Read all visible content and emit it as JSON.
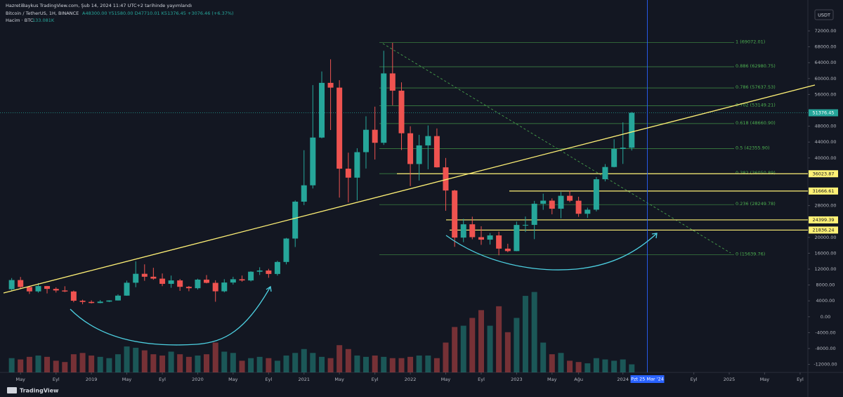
{
  "chart_data": {
    "type": "candlestick",
    "published": "HazretiBaykus TradingView.com, Şub 14, 2024 11:47 UTC+2 tarihinde yayımlandı",
    "title": "Bitcoin / TetherUS, 1H, BINANCE",
    "ohlc_text": "A48300.00 Y51580.00 D47710.01 K51376.45 +3076.46 (+6.37%)",
    "volume_label": "Hacim · BTC",
    "volume_text": "133.081K",
    "currency": "USDT",
    "brand": "TradingView",
    "up_color": "#26a69a",
    "down_color": "#ef5350",
    "x": [
      2018.25,
      2018.333,
      2018.417,
      2018.5,
      2018.583,
      2018.667,
      2018.75,
      2018.833,
      2018.917,
      2019,
      2019.083,
      2019.167,
      2019.25,
      2019.333,
      2019.417,
      2019.5,
      2019.583,
      2019.667,
      2019.75,
      2019.833,
      2019.917,
      2020,
      2020.083,
      2020.167,
      2020.25,
      2020.333,
      2020.417,
      2020.5,
      2020.583,
      2020.667,
      2020.75,
      2020.833,
      2020.917,
      2021,
      2021.083,
      2021.167,
      2021.25,
      2021.333,
      2021.417,
      2021.5,
      2021.583,
      2021.667,
      2021.75,
      2021.833,
      2021.917,
      2022,
      2022.083,
      2022.167,
      2022.25,
      2022.333,
      2022.417,
      2022.5,
      2022.583,
      2022.667,
      2022.75,
      2022.833,
      2022.917,
      2023,
      2023.083,
      2023.167,
      2023.25,
      2023.333,
      2023.417,
      2023.5,
      2023.583,
      2023.667,
      2023.75,
      2023.833,
      2023.917,
      2024,
      2024.083
    ],
    "open": [
      6930,
      9240,
      7490,
      6390,
      7730,
      7020,
      6620,
      6370,
      4040,
      3740,
      3460,
      3810,
      4100,
      5320,
      8570,
      10820,
      10080,
      9600,
      8290,
      9150,
      7540,
      7190,
      9350,
      8540,
      6410,
      8620,
      9450,
      9140,
      11350,
      11650,
      10780,
      13800,
      19700,
      28990,
      33110,
      45140,
      58920,
      57720,
      37300,
      35040,
      41460,
      47100,
      43820,
      61300,
      56950,
      46220,
      38470,
      43160,
      45510,
      37640,
      31800,
      19940,
      23290,
      20050,
      19420,
      20490,
      17160,
      16540,
      23130,
      23140,
      28470,
      29250,
      27210,
      30470,
      29230,
      25940,
      26970,
      34640,
      37720,
      42280,
      42580
    ],
    "high": [
      9750,
      10020,
      7770,
      8490,
      7760,
      7410,
      7680,
      6590,
      4300,
      4140,
      4200,
      4150,
      5650,
      9100,
      13970,
      13200,
      12330,
      10900,
      10370,
      9510,
      7750,
      9580,
      10500,
      9190,
      9470,
      10070,
      10380,
      11450,
      12470,
      12070,
      14100,
      19860,
      29300,
      41950,
      58350,
      61790,
      64850,
      59590,
      41330,
      42450,
      50500,
      52920,
      67000,
      69000,
      59050,
      47990,
      45820,
      48190,
      47440,
      40000,
      31990,
      24670,
      25210,
      22800,
      21080,
      21450,
      18390,
      23960,
      25250,
      29190,
      31000,
      29820,
      31430,
      31800,
      30230,
      27480,
      35200,
      38450,
      44700,
      48970,
      51580
    ],
    "low": [
      6430,
      7030,
      5750,
      6070,
      5880,
      6100,
      6200,
      3650,
      3160,
      3350,
      3400,
      3700,
      4090,
      5300,
      7440,
      9050,
      9320,
      7710,
      7300,
      6520,
      6430,
      6850,
      8410,
      3780,
      6150,
      8110,
      8830,
      8890,
      10520,
      9820,
      10370,
      13200,
      17570,
      28130,
      32300,
      44950,
      47040,
      30000,
      28800,
      29280,
      37330,
      39600,
      43280,
      53260,
      42000,
      32920,
      34320,
      37150,
      37580,
      26700,
      17620,
      18780,
      19520,
      18120,
      18180,
      15480,
      16250,
      16500,
      21350,
      19550,
      26940,
      25810,
      24800,
      28860,
      25170,
      24900,
      26540,
      34100,
      37620,
      38500,
      41880
    ],
    "close": [
      9240,
      7490,
      6390,
      7730,
      7020,
      6620,
      6370,
      4040,
      3740,
      3460,
      3810,
      4100,
      5320,
      8570,
      10820,
      10080,
      9600,
      8290,
      9150,
      7540,
      7190,
      9350,
      8540,
      6410,
      8620,
      9450,
      9140,
      11350,
      11650,
      10780,
      13800,
      19700,
      28990,
      33110,
      45140,
      58920,
      57720,
      37300,
      35040,
      41460,
      47100,
      43820,
      61300,
      56950,
      46220,
      38470,
      43160,
      45510,
      37640,
      31800,
      19940,
      23290,
      20050,
      19420,
      20490,
      17160,
      16540,
      23130,
      23140,
      28470,
      29250,
      27210,
      30470,
      29230,
      25940,
      26970,
      34640,
      37720,
      42280,
      42580,
      51376.45
    ],
    "volume": [
      1100000,
      1000000,
      1200000,
      1300000,
      1200000,
      900000,
      800000,
      1400000,
      1500000,
      1300000,
      1200000,
      1100000,
      1400000,
      2000000,
      1900000,
      1700000,
      1400000,
      1300000,
      1600000,
      1400000,
      1200000,
      1300000,
      1400000,
      2300000,
      1600000,
      1500000,
      900000,
      1100000,
      1200000,
      1100000,
      900000,
      1300000,
      1500000,
      1800000,
      1500000,
      1200000,
      1100000,
      2100000,
      1800000,
      1300000,
      1200000,
      1300000,
      1200000,
      1100000,
      1100000,
      1200000,
      1300000,
      1300000,
      1100000,
      2300000,
      3500000,
      3600000,
      4200000,
      4800000,
      3600000,
      5100000,
      3100000,
      4200000,
      5900000,
      6200000,
      2300000,
      1400000,
      1500000,
      900000,
      800000,
      700000,
      1100000,
      1000000,
      900000,
      1000000,
      620000
    ],
    "volume_ylim": [
      0,
      6500000
    ],
    "xlim": [
      2018.14,
      2025.74
    ],
    "xticks": [
      {
        "value": 2018.333,
        "label": "May"
      },
      {
        "value": 2018.667,
        "label": "Eyl"
      },
      2019,
      {
        "value": 2019.333,
        "label": "May"
      },
      {
        "value": 2019.667,
        "label": "Eyl"
      },
      2020,
      {
        "value": 2020.333,
        "label": "May"
      },
      {
        "value": 2020.667,
        "label": "Eyl"
      },
      2021,
      {
        "value": 2021.333,
        "label": "May"
      },
      {
        "value": 2021.667,
        "label": "Eyl"
      },
      2022,
      {
        "value": 2022.333,
        "label": "May"
      },
      {
        "value": 2022.667,
        "label": "Eyl"
      },
      2023,
      {
        "value": 2023.333,
        "label": "May"
      },
      {
        "value": 2023.583,
        "label": "Ağu"
      },
      2024,
      {
        "value": 2024.667,
        "label": "Eyl"
      },
      2025,
      {
        "value": 2025.333,
        "label": "May"
      },
      {
        "value": 2025.667,
        "label": "Eyl"
      }
    ],
    "ylim": [
      -14020,
      79790
    ],
    "yticks": [
      {
        "value": 72000,
        "label": "72000.00"
      },
      {
        "value": 68000,
        "label": "68000.00"
      },
      {
        "value": 64000,
        "label": "64000.00"
      },
      {
        "value": 60000,
        "label": "60000.00"
      },
      {
        "value": 56000,
        "label": "56000.00"
      },
      {
        "value": 48000,
        "label": "48000.00"
      },
      {
        "value": 44000,
        "label": "44000.00"
      },
      {
        "value": 40000,
        "label": "40000.00"
      },
      {
        "value": 28000,
        "label": "28000.00"
      },
      {
        "value": 20000,
        "label": "20000.00"
      },
      {
        "value": 16000,
        "label": "16000.00"
      },
      {
        "value": 12000,
        "label": "12000.00"
      },
      {
        "value": 8000,
        "label": "8000.00"
      },
      {
        "value": 4000,
        "label": "4000.00"
      },
      {
        "value": 0,
        "label": "0.00"
      },
      {
        "value": -4000,
        "label": "-4000.00"
      },
      {
        "value": -8000,
        "label": "-8000.00"
      },
      {
        "value": -12000,
        "label": "-12000.00"
      }
    ],
    "fib_levels": [
      {
        "value": 69072.01,
        "label": "1 (69072.01)"
      },
      {
        "value": 62980.75,
        "label": "0.886 (62980.75)"
      },
      {
        "value": 57637.53,
        "label": "0.786 (57637.53)"
      },
      {
        "value": 53149.21,
        "label": "0.702 (53149.21)"
      },
      {
        "value": 48660.9,
        "label": "0.618 (48660.90)"
      },
      {
        "value": 42355.9,
        "label": "0.5 (42355.90)"
      },
      {
        "value": 36050.89,
        "label": "0.382 (36050.89)"
      },
      {
        "value": 28249.78,
        "label": "0.236 (28249.78)"
      },
      {
        "value": 15639.76,
        "label": "0 (15639.76)"
      }
    ],
    "fib_color": "#4caf50",
    "levels": [
      36023.87,
      31666.61,
      24399.39,
      21836.24
    ],
    "level_color": "#fff176",
    "last_price": 51376.45,
    "last_price_color": "#26a69a",
    "cursor": {
      "value": 2024.23,
      "label": "Pzt 25 Mar '24"
    },
    "cursor_color": "#2962ff"
  }
}
